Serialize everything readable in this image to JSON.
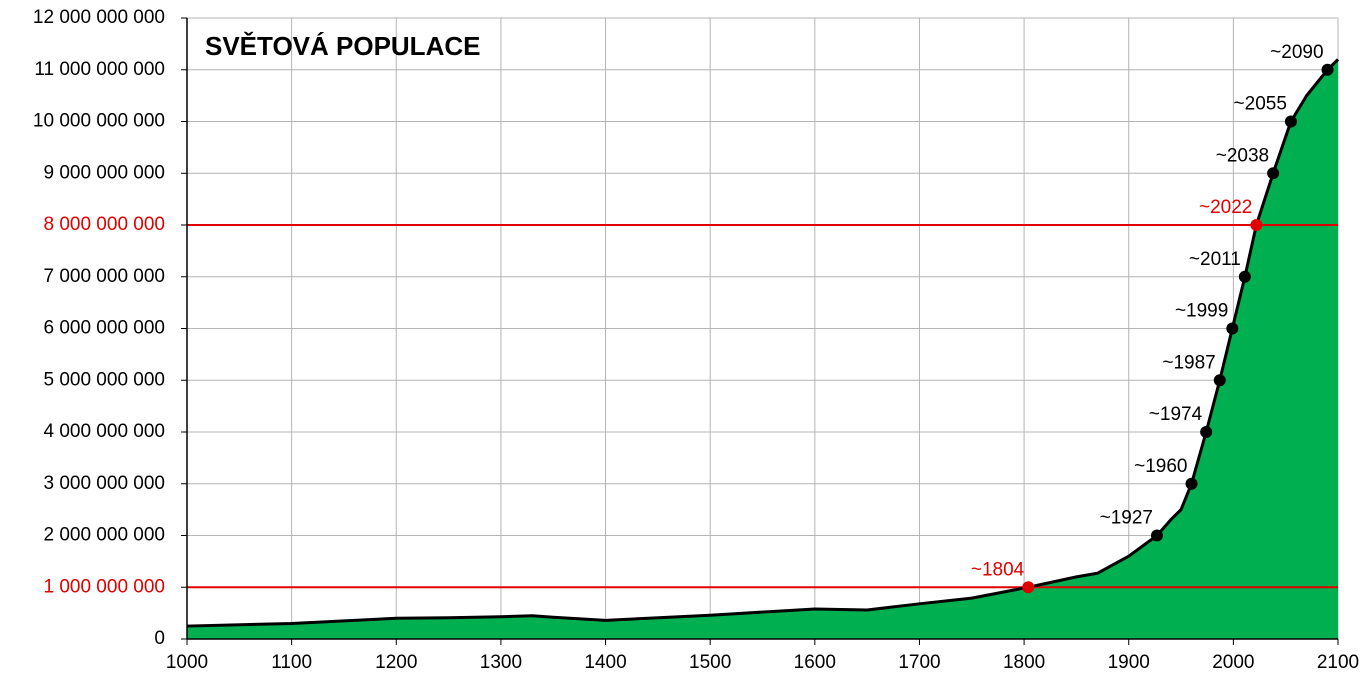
{
  "chart_data": {
    "type": "area",
    "title": "SVĚTOVÁ POPULACE",
    "x": [
      1000,
      1100,
      1200,
      1250,
      1300,
      1330,
      1350,
      1400,
      1500,
      1600,
      1650,
      1700,
      1750,
      1804,
      1850,
      1870,
      1900,
      1927,
      1940,
      1950,
      1960,
      1974,
      1987,
      1999,
      2011,
      2022,
      2038,
      2055,
      2070,
      2090,
      2100
    ],
    "values": [
      250000000,
      300000000,
      400000000,
      410000000,
      430000000,
      450000000,
      420000000,
      360000000,
      460000000,
      580000000,
      560000000,
      680000000,
      790000000,
      1000000000,
      1200000000,
      1270000000,
      1600000000,
      2000000000,
      2300000000,
      2500000000,
      3000000000,
      4000000000,
      5000000000,
      6000000000,
      7000000000,
      8000000000,
      9000000000,
      10000000000,
      10500000000,
      11000000000,
      11200000000
    ],
    "color": "#00b050",
    "line_color": "#000000",
    "milestones": {
      "x": [
        1804,
        1927,
        1960,
        1974,
        1987,
        1999,
        2011,
        2022,
        2038,
        2055,
        2090
      ],
      "values": [
        1000000000,
        2000000000,
        3000000000,
        4000000000,
        5000000000,
        6000000000,
        7000000000,
        8000000000,
        9000000000,
        10000000000,
        11000000000
      ],
      "labels": [
        "~1804",
        "~1927",
        "~1960",
        "~1974",
        "~1987",
        "~1999",
        "~2011",
        "~2022",
        "~2038",
        "~2055",
        "~2090"
      ],
      "colors": [
        "#e00000",
        "#000000",
        "#000000",
        "#000000",
        "#000000",
        "#000000",
        "#000000",
        "#e00000",
        "#000000",
        "#000000",
        "#000000"
      ]
    },
    "highlight_ticks": [
      1000000000,
      8000000000
    ],
    "highlight_color": "#e00000",
    "xlim": [
      1000,
      2100
    ],
    "xticks": [
      1000,
      1100,
      1200,
      1300,
      1400,
      1500,
      1600,
      1700,
      1800,
      1900,
      2000,
      2100
    ],
    "ylim": [
      0,
      12000000000
    ],
    "yticks": [
      0,
      {
        "value": 1000000000,
        "label": "1 000 000 000"
      },
      {
        "value": 2000000000,
        "label": "2 000 000 000"
      },
      {
        "value": 3000000000,
        "label": "3 000 000 000"
      },
      {
        "value": 4000000000,
        "label": "4 000 000 000"
      },
      {
        "value": 5000000000,
        "label": "5 000 000 000"
      },
      {
        "value": 6000000000,
        "label": "6 000 000 000"
      },
      {
        "value": 7000000000,
        "label": "7 000 000 000"
      },
      {
        "value": 8000000000,
        "label": "8 000 000 000"
      },
      {
        "value": 9000000000,
        "label": "9 000 000 000"
      },
      {
        "value": 10000000000,
        "label": "10 000 000 000"
      },
      {
        "value": 11000000000,
        "label": "11 000 000 000"
      },
      {
        "value": 12000000000,
        "label": "12 000 000 000"
      }
    ],
    "grid": true
  }
}
